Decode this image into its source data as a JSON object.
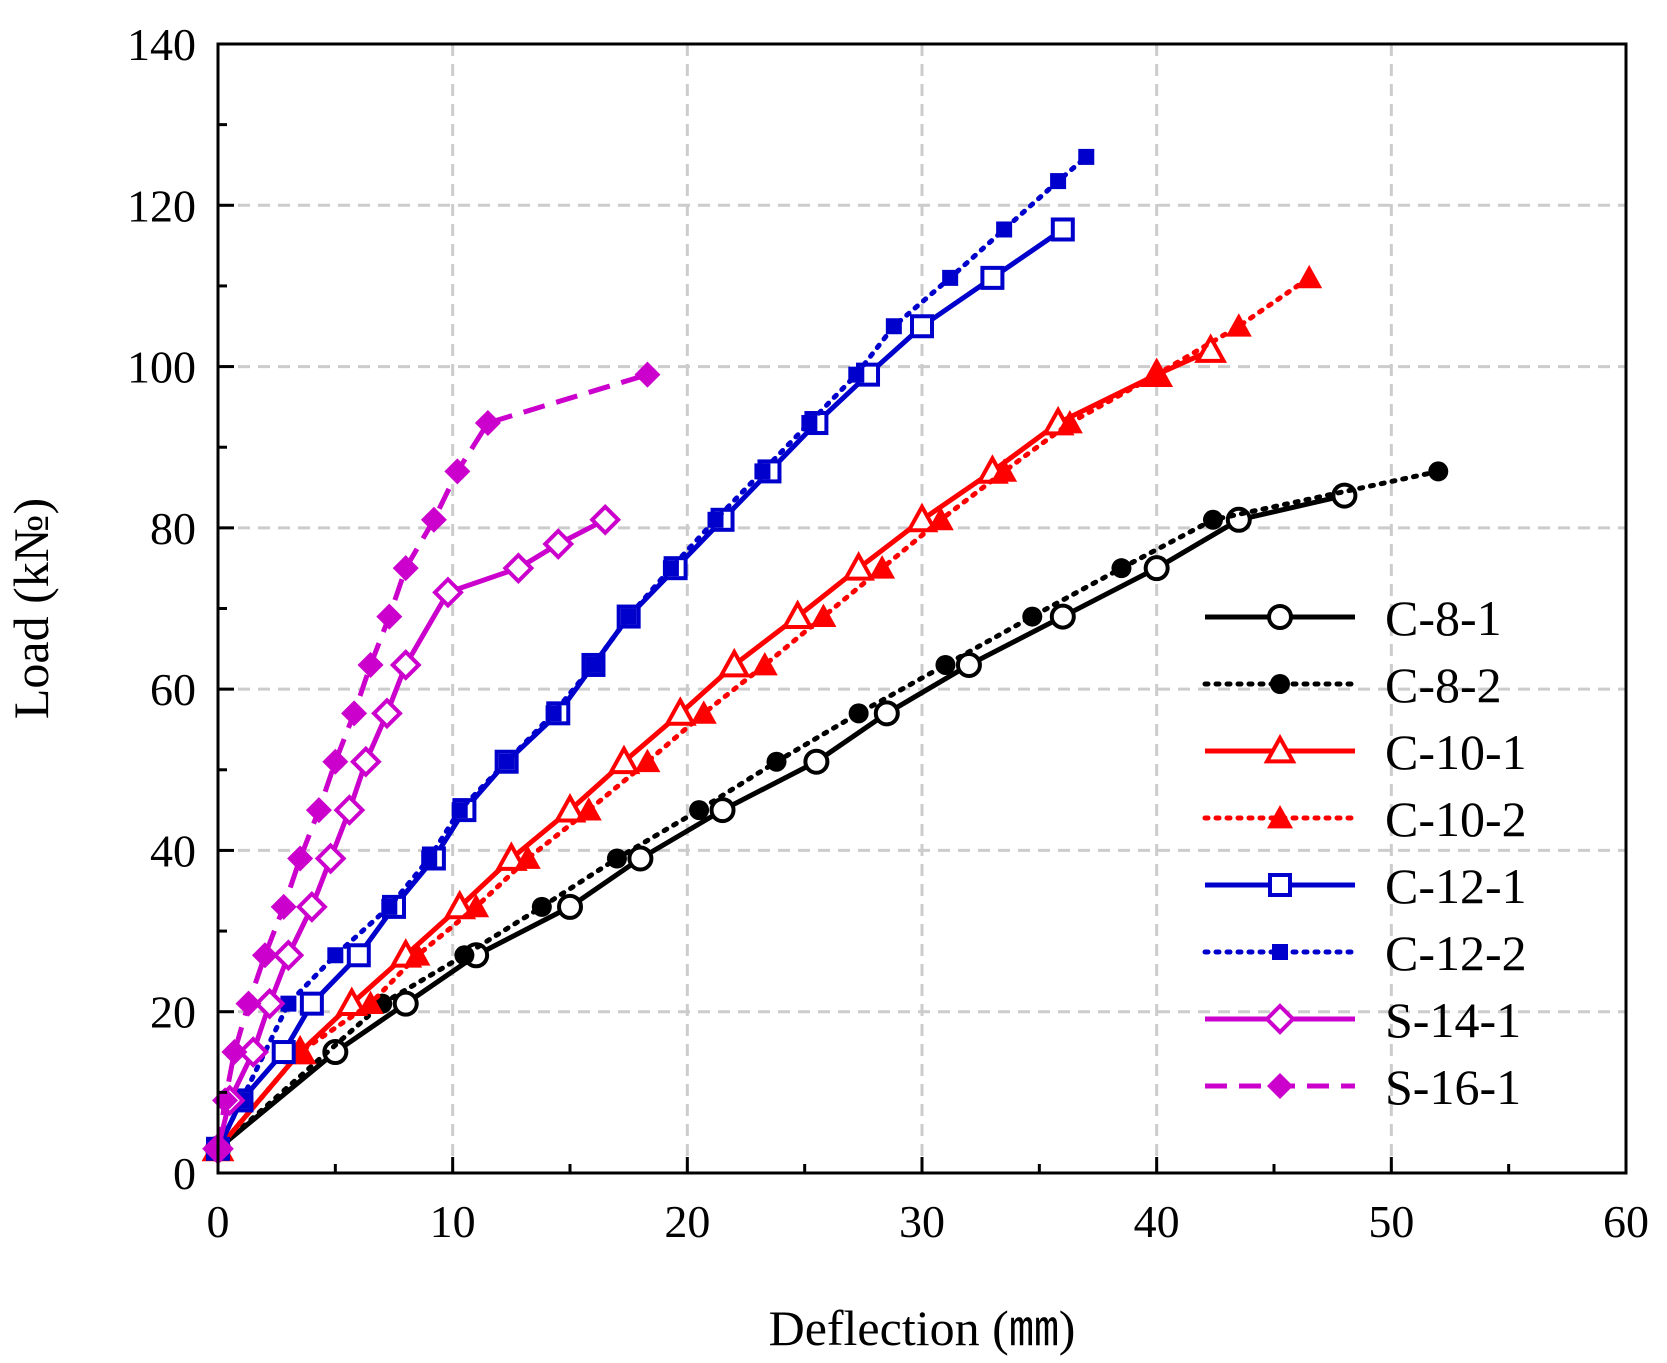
{
  "chart_data": {
    "type": "line",
    "xlabel": "Deflection (㎜)",
    "ylabel": "Load (k№)",
    "xlim": [
      0,
      60
    ],
    "ylim": [
      0,
      140
    ],
    "xticks": [
      "0",
      "10",
      "20",
      "30",
      "40",
      "50",
      "60"
    ],
    "yticks": [
      "0",
      "20",
      "40",
      "60",
      "80",
      "100",
      "120",
      "140"
    ],
    "grid": true,
    "legend_position": "bottom-right",
    "series": [
      {
        "name": "C-8-1",
        "color": "#000000",
        "line": "solid",
        "marker": "circle-open",
        "x": [
          0,
          5,
          8,
          11,
          15,
          18,
          21.5,
          25.5,
          28.5,
          32,
          36,
          40,
          43.5,
          48
        ],
        "y": [
          3,
          15,
          21,
          27,
          33,
          39,
          45,
          51,
          57,
          63,
          69,
          75,
          81,
          84
        ]
      },
      {
        "name": "C-8-2",
        "color": "#000000",
        "line": "dotted",
        "marker": "circle-filled",
        "x": [
          0,
          7,
          10.5,
          13.8,
          17,
          20.5,
          23.8,
          27.3,
          31,
          34.7,
          38.5,
          42.4,
          52
        ],
        "y": [
          3,
          21,
          27,
          33,
          39,
          45,
          51,
          57,
          63,
          69,
          75,
          81,
          87
        ]
      },
      {
        "name": "C-10-1",
        "color": "#ff0000",
        "line": "solid",
        "marker": "triangle-open",
        "x": [
          0,
          3.5,
          5.7,
          8,
          10.3,
          12.5,
          15,
          17.3,
          19.7,
          22,
          24.7,
          27.3,
          30,
          33,
          35.8,
          40,
          42.3
        ],
        "y": [
          3,
          15,
          21,
          27,
          33,
          39,
          45,
          51,
          57,
          63,
          69,
          75,
          81,
          87,
          93,
          99,
          102
        ]
      },
      {
        "name": "C-10-2",
        "color": "#ff0000",
        "line": "dotted",
        "marker": "triangle-filled",
        "x": [
          0,
          3.5,
          6.5,
          8.5,
          11,
          13.2,
          15.8,
          18.3,
          20.7,
          23.3,
          25.8,
          28.3,
          30.8,
          33.5,
          36.3,
          40,
          43.5,
          46.5
        ],
        "y": [
          3,
          15,
          21,
          27,
          33,
          39,
          45,
          51,
          57,
          63,
          69,
          75,
          81,
          87,
          93,
          99,
          105,
          111
        ]
      },
      {
        "name": "C-12-1",
        "color": "#0000cc",
        "line": "solid",
        "marker": "square-open",
        "x": [
          0,
          1,
          2.8,
          4,
          6,
          7.5,
          9.2,
          10.5,
          12.3,
          14.5,
          16,
          17.5,
          19.5,
          21.5,
          23.5,
          25.5,
          27.7,
          30,
          33,
          36
        ],
        "y": [
          3,
          9,
          15,
          21,
          27,
          33,
          39,
          45,
          51,
          57,
          63,
          69,
          75,
          81,
          87,
          93,
          99,
          105,
          111,
          117
        ]
      },
      {
        "name": "C-12-2",
        "color": "#0000cc",
        "line": "dotted",
        "marker": "square-filled",
        "x": [
          0,
          1,
          3,
          5,
          7.3,
          9,
          10.3,
          12.3,
          14.3,
          16,
          17.5,
          19.3,
          21.2,
          23.2,
          25.2,
          27.2,
          28.8,
          31.2,
          33.5,
          35.8,
          37
        ],
        "y": [
          3,
          9,
          21,
          27,
          33,
          39,
          45,
          51,
          57,
          63,
          69,
          75,
          81,
          87,
          93,
          99,
          105,
          111,
          117,
          123,
          126
        ]
      },
      {
        "name": "S-14-1",
        "color": "#cc00cc",
        "line": "solid",
        "marker": "diamond-open",
        "x": [
          0,
          0.5,
          1.5,
          2.2,
          3,
          4,
          4.8,
          5.6,
          6.3,
          7.2,
          8,
          9.8,
          12.8,
          14.5,
          16.5
        ],
        "y": [
          3,
          9,
          15,
          21,
          27,
          33,
          39,
          45,
          51,
          57,
          63,
          72,
          75,
          78,
          81
        ]
      },
      {
        "name": "S-16-1",
        "color": "#cc00cc",
        "line": "dashed",
        "marker": "diamond-filled",
        "x": [
          0,
          0.3,
          0.7,
          1.3,
          2,
          2.8,
          3.5,
          4.3,
          5,
          5.8,
          6.5,
          7.3,
          8,
          9.2,
          10.2,
          11.5,
          18.3
        ],
        "y": [
          3,
          9,
          15,
          21,
          27,
          33,
          39,
          45,
          51,
          57,
          63,
          69,
          75,
          81,
          87,
          93,
          99
        ]
      }
    ]
  }
}
